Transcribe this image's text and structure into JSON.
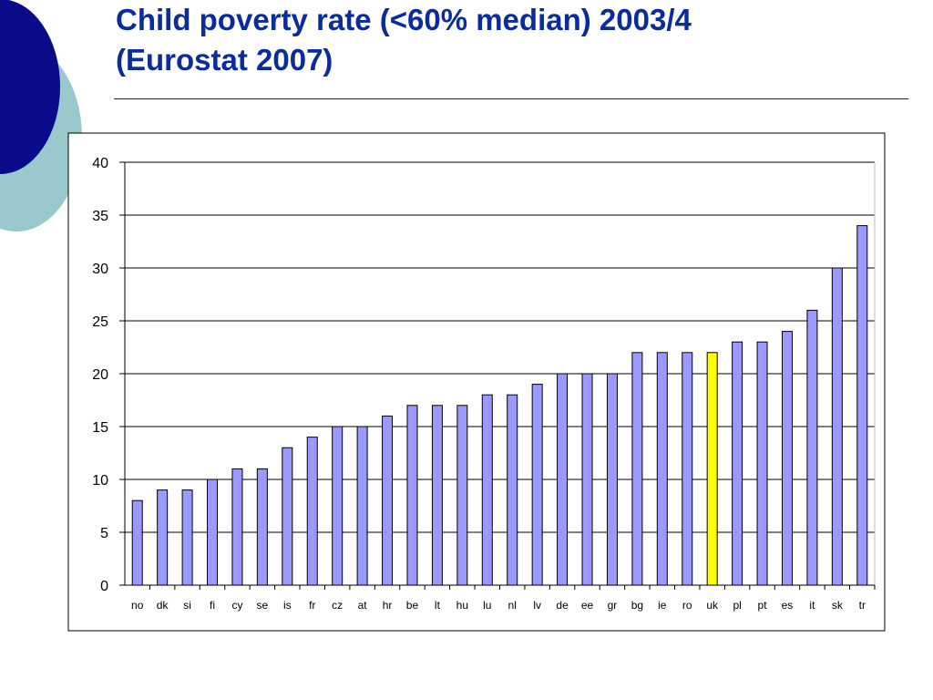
{
  "slide": {
    "title_line1": "Child poverty rate (<60% median) 2003/4",
    "title_line2": "(Eurostat 2007)",
    "accent_colors": {
      "title": "#0b2c9e",
      "dark_circle": "#0a0a8a",
      "light_circle": "#99c9cc"
    }
  },
  "chart_data": {
    "type": "bar",
    "title": "",
    "xlabel": "",
    "ylabel": "",
    "ylim": [
      0,
      40
    ],
    "yticks": [
      0,
      5,
      10,
      15,
      20,
      25,
      30,
      35,
      40
    ],
    "grid": true,
    "legend": "none",
    "bar_color": "#9999ff",
    "highlight_color": "#ffff00",
    "highlight_category": "uk",
    "categories": [
      "no",
      "dk",
      "si",
      "fi",
      "cy",
      "se",
      "is",
      "fr",
      "cz",
      "at",
      "hr",
      "be",
      "lt",
      "hu",
      "lu",
      "nl",
      "lv",
      "de",
      "ee",
      "gr",
      "bg",
      "ie",
      "ro",
      "uk",
      "pl",
      "pt",
      "es",
      "it",
      "sk",
      "tr"
    ],
    "values": [
      8,
      9,
      9,
      10,
      11,
      11,
      13,
      14,
      15,
      15,
      16,
      17,
      17,
      17,
      18,
      18,
      19,
      20,
      20,
      20,
      22,
      22,
      22,
      22,
      23,
      23,
      24,
      26,
      30,
      34
    ]
  }
}
